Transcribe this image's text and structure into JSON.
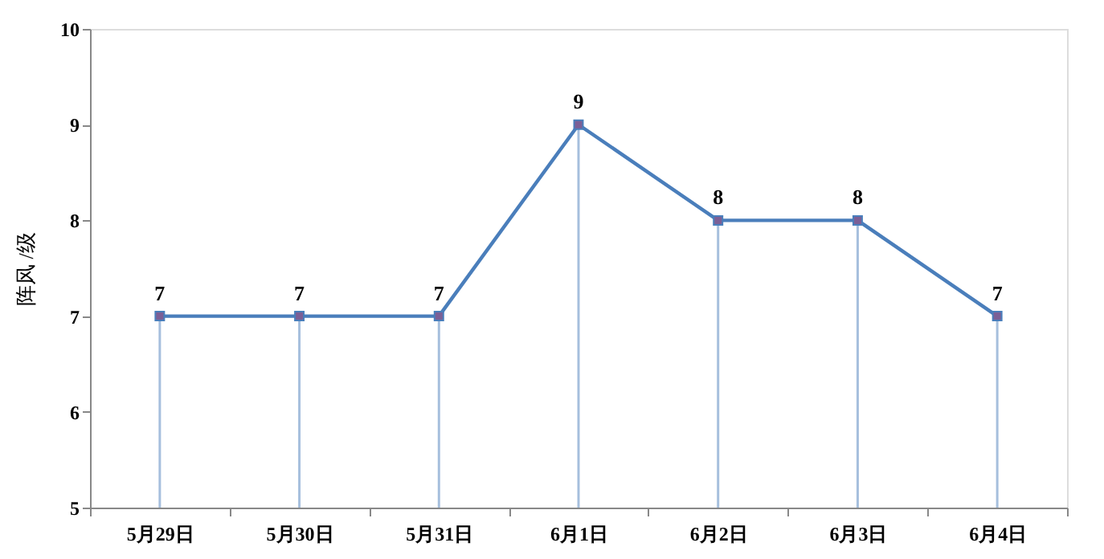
{
  "chart_data": {
    "type": "line",
    "ylabel": "阵风 /级",
    "categories": [
      "5月29日",
      "5月30日",
      "5月31日",
      "6月1日",
      "6月2日",
      "6月3日",
      "6月4日"
    ],
    "series": [
      {
        "color": "#4a7ebb",
        "values": [
          7,
          7,
          7,
          9,
          8,
          8,
          7
        ],
        "errors": [
          [
            5,
            7
          ],
          [
            5,
            7
          ],
          [
            5,
            7
          ],
          [
            5,
            9
          ],
          [
            5,
            8
          ],
          [
            5,
            8
          ],
          [
            5,
            7
          ]
        ]
      }
    ],
    "ylim": [
      5,
      10
    ],
    "yticks": [
      5,
      6,
      7,
      8,
      9,
      10
    ],
    "grid": false,
    "marker": "square",
    "line_style": "solid",
    "data_labels": true
  }
}
